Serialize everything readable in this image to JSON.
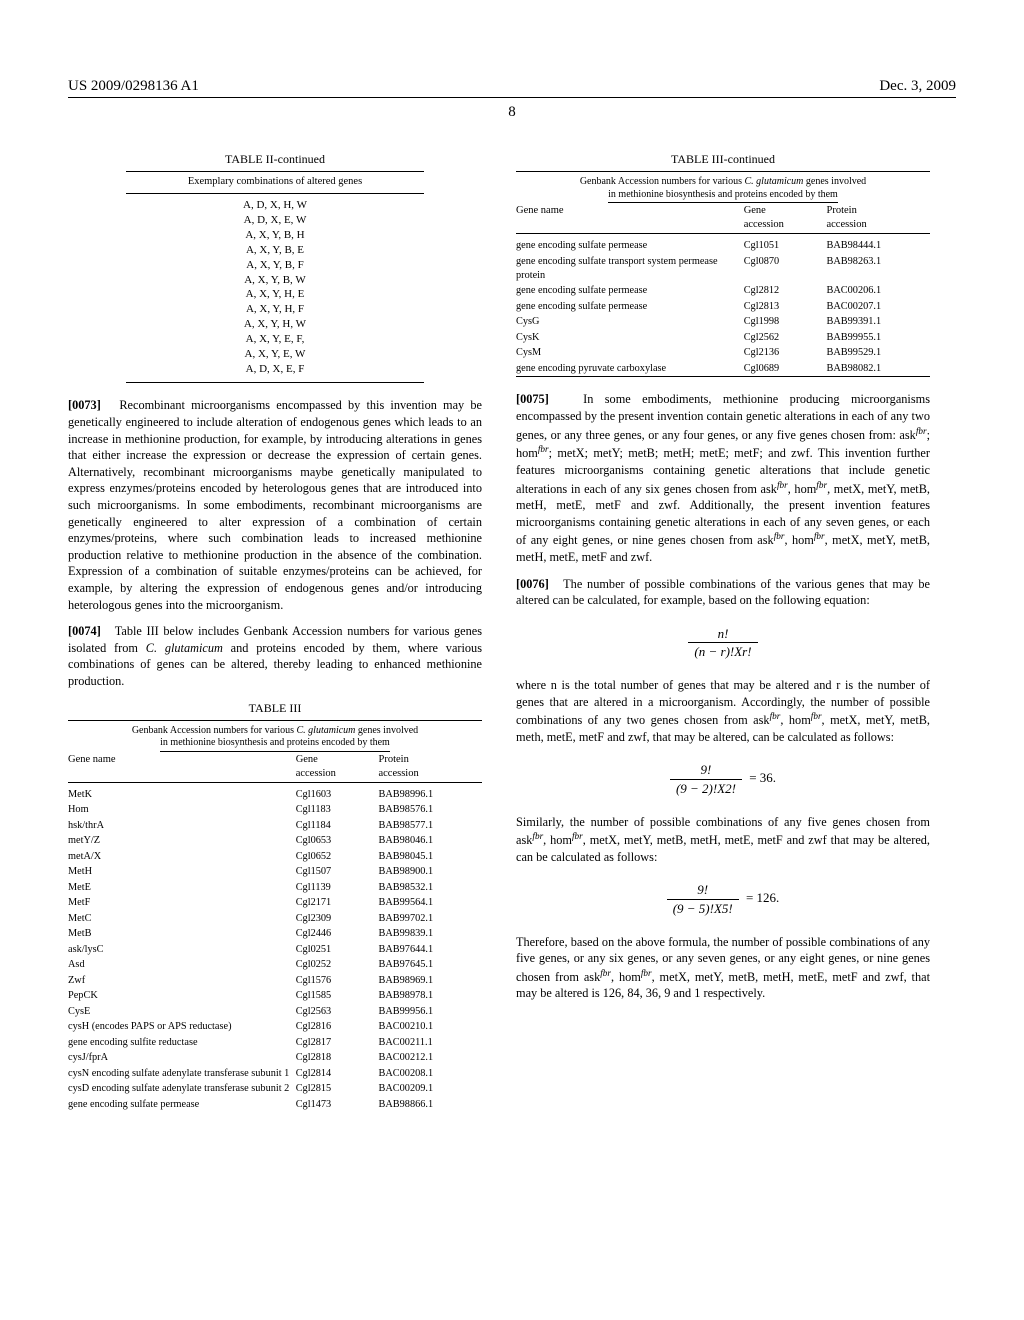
{
  "header": {
    "left": "US 2009/0298136 A1",
    "right": "Dec. 3, 2009"
  },
  "page_num": "8",
  "table2": {
    "title": "TABLE II-continued",
    "caption": "Exemplary combinations of altered genes",
    "rows": [
      "A, D, X, H, W",
      "A, D, X, E, W",
      "A, X, Y, B, H",
      "A, X, Y, B, E",
      "A, X, Y, B, F",
      "A, X, Y, B, W",
      "A, X, Y, H, E",
      "A, X, Y, H, F",
      "A, X, Y, H, W",
      "A, X, Y, E, F,",
      "A, X, Y, E, W",
      "A, D, X, E, F"
    ]
  },
  "para73": {
    "num": "[0073]",
    "text": "Recombinant microorganisms encompassed by this invention may be genetically engineered to include alteration of endogenous genes which leads to an increase in methionine production, for example, by introducing alterations in genes that either increase the expression or decrease the expression of certain genes. Alternatively, recombinant microorganisms maybe genetically manipulated to express enzymes/proteins encoded by heterologous genes that are introduced into such microorganisms. In some embodiments, recombinant microorganisms are genetically engineered to alter expression of a combination of certain enzymes/proteins, where such combination leads to increased methionine production relative to methionine production in the absence of the combination. Expression of a combination of suitable enzymes/proteins can be achieved, for example, by altering the expression of endogenous genes and/or introducing heterologous genes into the microorganism."
  },
  "para74": {
    "num": "[0074]",
    "pre": "Table III below includes Genbank Accession numbers for various genes isolated from ",
    "ital": "C. glutamicum",
    "post": " and proteins encoded by them, where various combinations of genes can be altered, thereby leading to enhanced methionine production."
  },
  "table3": {
    "title": "TABLE III",
    "title_cont": "TABLE III-continued",
    "caption_line1": "Genbank Accession numbers for various ",
    "caption_ital": "C. glutamicum",
    "caption_line1b": " genes involved",
    "caption_line2": "in methionine biosynthesis and proteins encoded by them",
    "head": {
      "c1": "Gene name",
      "c2": "Gene\naccession",
      "c3": "Protein\naccession"
    },
    "rows_left": [
      [
        "MetK",
        "Cgl1603",
        "BAB98996.1"
      ],
      [
        "Hom",
        "Cgl1183",
        "BAB98576.1"
      ],
      [
        "hsk/thrA",
        "Cgl1184",
        "BAB98577.1"
      ],
      [
        "metY/Z",
        "Cgl0653",
        "BAB98046.1"
      ],
      [
        "metA/X",
        "Cgl0652",
        "BAB98045.1"
      ],
      [
        "MetH",
        "Cgl1507",
        "BAB98900.1"
      ],
      [
        "MetE",
        "Cgl1139",
        "BAB98532.1"
      ],
      [
        "MetF",
        "Cgl2171",
        "BAB99564.1"
      ],
      [
        "MetC",
        "Cgl2309",
        "BAB99702.1"
      ],
      [
        "MetB",
        "Cgl2446",
        "BAB99839.1"
      ],
      [
        "ask/lysC",
        "Cgl0251",
        "BAB97644.1"
      ],
      [
        "Asd",
        "Cgl0252",
        "BAB97645.1"
      ],
      [
        "Zwf",
        "Cgl1576",
        "BAB98969.1"
      ],
      [
        "PepCK",
        "Cgl1585",
        "BAB98978.1"
      ],
      [
        "CysE",
        "Cgl2563",
        "BAB99956.1"
      ],
      [
        "cysH (encodes PAPS or APS reductase)",
        "Cgl2816",
        "BAC00210.1"
      ],
      [
        "gene encoding sulfite reductase",
        "Cgl2817",
        "BAC00211.1"
      ],
      [
        "cysJ/fprA",
        "Cgl2818",
        "BAC00212.1"
      ],
      [
        "cysN encoding sulfate adenylate transferase subunit 1",
        "Cgl2814",
        "BAC00208.1"
      ],
      [
        "cysD encoding sulfate adenylate transferase subunit 2",
        "Cgl2815",
        "BAC00209.1"
      ],
      [
        "gene encoding sulfate permease",
        "Cgl1473",
        "BAB98866.1"
      ]
    ],
    "rows_right": [
      [
        "gene encoding sulfate permease",
        "Cgl1051",
        "BAB98444.1"
      ],
      [
        "gene encoding sulfate transport system permease protein",
        "Cgl0870",
        "BAB98263.1"
      ],
      [
        "gene encoding sulfate permease",
        "Cgl2812",
        "BAC00206.1"
      ],
      [
        "gene encoding sulfate permease",
        "Cgl2813",
        "BAC00207.1"
      ],
      [
        "CysG",
        "Cgl1998",
        "BAB99391.1"
      ],
      [
        "CysK",
        "Cgl2562",
        "BAB99955.1"
      ],
      [
        "CysM",
        "Cgl2136",
        "BAB99529.1"
      ],
      [
        "gene encoding pyruvate carboxylase",
        "Cgl0689",
        "BAB98082.1"
      ]
    ]
  },
  "para75": {
    "num": "[0075]",
    "text_a": "In some embodiments, methionine producing microorganisms encompassed by the present invention contain genetic alterations in each of any two genes, or any three genes, or any four genes, or any five genes chosen from: ask",
    "text_b": "; hom",
    "text_c": "; metX; metY; metB; metH; metE; metF; and zwf. This invention further features microorganisms containing genetic alterations that include genetic alterations in each of any six genes chosen from ask",
    "text_d": ", hom",
    "text_e": ", metX, metY, metB, metH, metE, metF and zwf. Additionally, the present invention features microorganisms containing genetic alterations in each of any seven genes, or each of any eight genes, or nine genes chosen from ask",
    "text_f": ", hom",
    "text_g": ", metX, metY, metB, metH, metE, metF and zwf.",
    "fbr": "fbr"
  },
  "para76": {
    "num": "[0076]",
    "text": "The number of possible combinations of the various genes that may be altered can be calculated, for example, based on the following equation:"
  },
  "formula1": {
    "top": "n!",
    "bot": "(n − r)!Xr!"
  },
  "para_where": {
    "text_a": "where n is the total number of genes that may be altered and r is the number of genes that are altered in a microorganism. Accordingly, the number of possible combinations of any two genes chosen from ask",
    "text_b": ", hom",
    "text_c": ", metX, metY, metB, meth, metE, metF and zwf, that may be altered, can be calculated as follows:",
    "fbr": "fbr"
  },
  "formula2": {
    "top": "9!",
    "bot": "(9 − 2)!X2!",
    "result": " = 36."
  },
  "para_sim": {
    "text_a": "Similarly, the number of possible combinations of any five genes chosen from ask",
    "text_b": ", hom",
    "text_c": ", metX, metY, metB, metH, metE, metF and zwf that may be altered, can be calculated as follows:",
    "fbr": "fbr"
  },
  "formula3": {
    "top": "9!",
    "bot": "(9 − 5)!X5!",
    "result": " = 126."
  },
  "para_last": {
    "text_a": "Therefore, based on the above formula, the number of possible combinations of any five genes, or any six genes, or any seven genes, or any eight genes, or nine genes chosen from ask",
    "text_b": ", hom",
    "text_c": ", metX, metY, metB, metH, metE, metF and zwf, that may be altered is 126, 84, 36, 9 and 1 respectively.",
    "fbr": "fbr"
  }
}
